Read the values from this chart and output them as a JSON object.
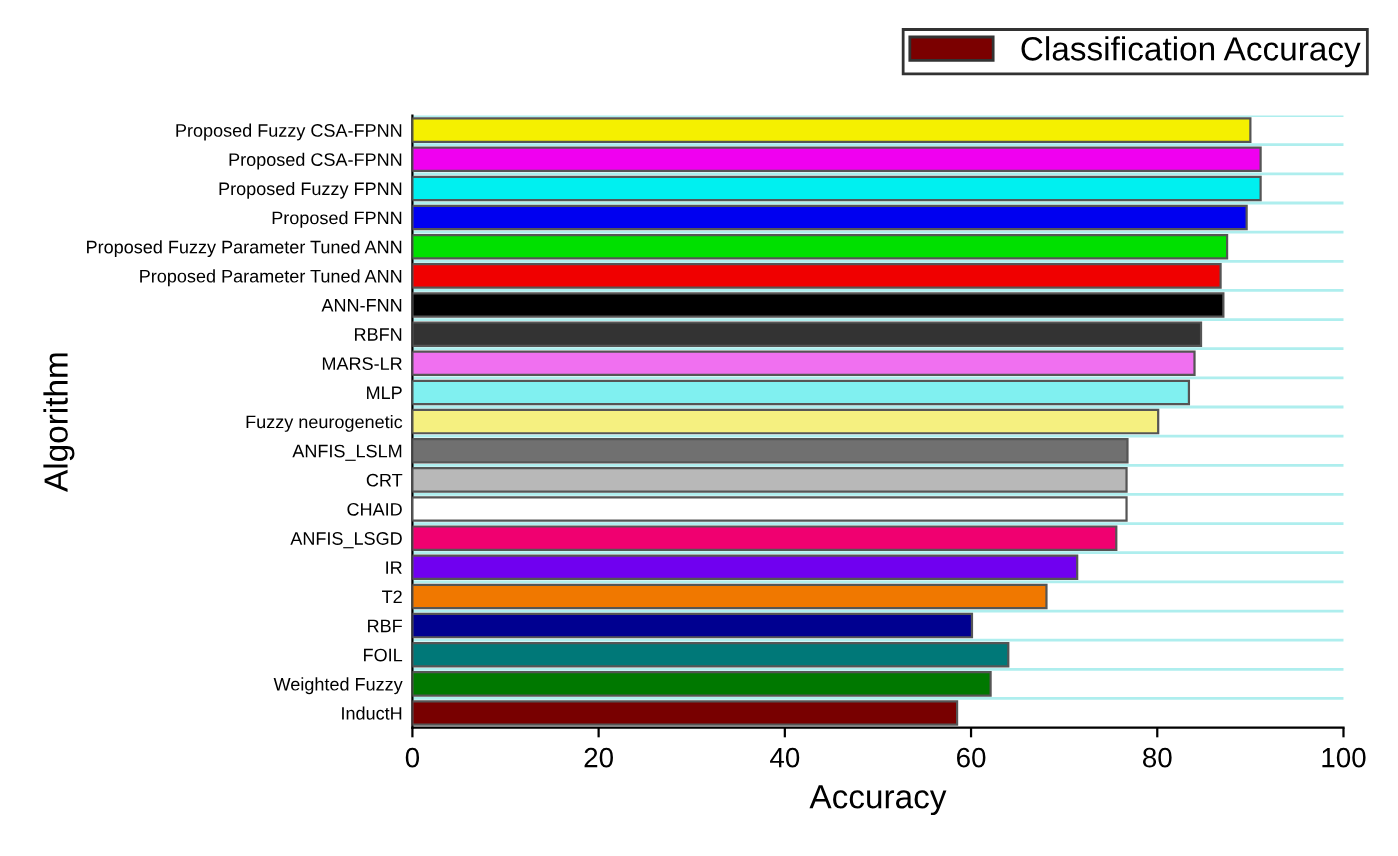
{
  "chart_data": {
    "type": "bar",
    "orientation": "horizontal",
    "xlabel": "Accuracy",
    "ylabel": "Algorithm",
    "categories": [
      "Proposed Fuzzy CSA-FPNN",
      "Proposed CSA-FPNN",
      "Proposed Fuzzy FPNN",
      "Proposed FPNN",
      "Proposed Fuzzy Parameter Tuned ANN",
      "Proposed Parameter Tuned ANN",
      "ANN-FNN",
      "RBFN",
      "MARS-LR",
      "MLP",
      "Fuzzy neurogenetic",
      "ANFIS_LSLM",
      "CRT",
      "CHAID",
      "ANFIS_LSGD",
      "IR",
      "T2",
      "RBF",
      "FOIL",
      "Weighted Fuzzy",
      "InductH"
    ],
    "series": [
      {
        "name": "Classification Accuracy",
        "color": "#7b0000",
        "values": [
          90.0,
          91.1,
          91.1,
          89.6,
          87.5,
          86.8,
          87.1,
          84.7,
          84.0,
          83.4,
          80.1,
          76.8,
          76.7,
          76.7,
          75.6,
          71.4,
          68.1,
          60.1,
          64.0,
          62.1,
          58.5
        ],
        "colors": [
          "#f5f000",
          "#f000f0",
          "#00f0f0",
          "#0000f0",
          "#00e000",
          "#f00000",
          "#000000",
          "#333333",
          "#f070f0",
          "#80f0f0",
          "#f5f080",
          "#707070",
          "#b8b8b8",
          "#ffffff",
          "#f00070",
          "#7000f0",
          "#f07800",
          "#000090",
          "#007878",
          "#007800",
          "#780000"
        ]
      }
    ],
    "xlim": [
      0,
      100
    ],
    "xticks": [
      0,
      20,
      40,
      60,
      80,
      100
    ],
    "grid": "y",
    "legend": "top right"
  }
}
